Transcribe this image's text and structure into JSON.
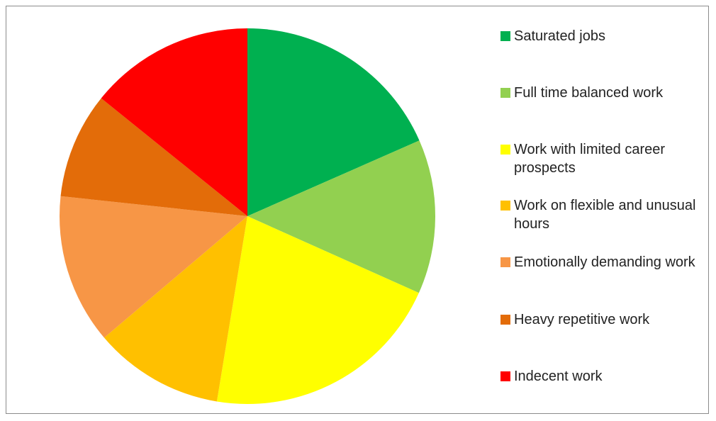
{
  "chart_data": {
    "type": "pie",
    "categories": [
      "Saturated jobs",
      "Full time balanced work",
      "Work with limited career prospects",
      "Work on flexible and unusual hours",
      "Emotionally demanding work",
      "Heavy repetitive work",
      "Indecent work"
    ],
    "values": [
      18.4,
      13.3,
      20.9,
      11.2,
      12.9,
      9.1,
      14.2
    ],
    "colors": [
      "#00b050",
      "#92d050",
      "#ffff00",
      "#ffc000",
      "#f79646",
      "#e36c09",
      "#ff0000"
    ],
    "legend": "right"
  }
}
